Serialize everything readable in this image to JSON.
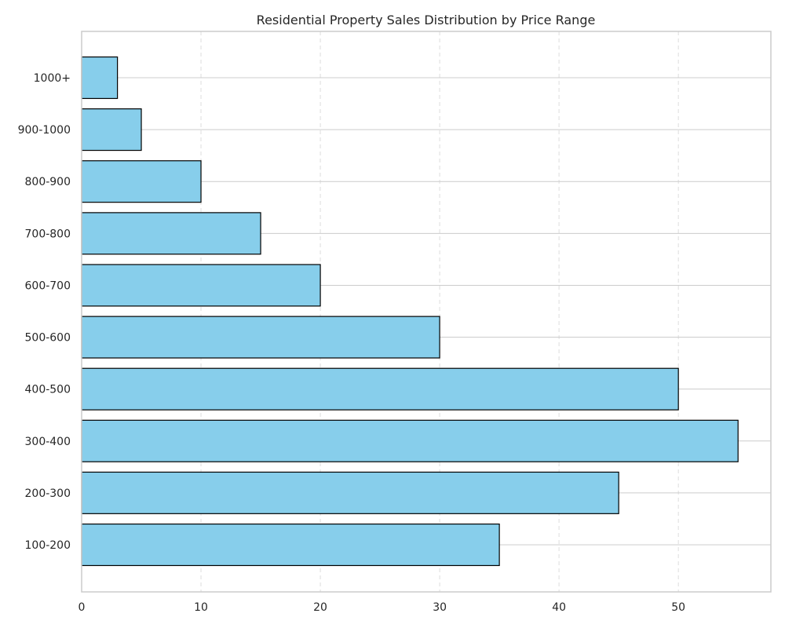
{
  "chart_data": {
    "type": "bar",
    "orientation": "horizontal",
    "title": "Residential Property Sales Distribution by Price Range",
    "xlabel": "",
    "ylabel": "",
    "categories": [
      "100-200",
      "200-300",
      "300-400",
      "400-500",
      "500-600",
      "600-700",
      "700-800",
      "800-900",
      "900-1000",
      "1000+"
    ],
    "values": [
      35,
      45,
      55,
      50,
      30,
      20,
      15,
      10,
      5,
      3
    ],
    "xlim": [
      0,
      57.75
    ],
    "x_ticks": [
      0,
      10,
      20,
      30,
      40,
      50
    ],
    "grid": "on",
    "legend": "none",
    "colors": {
      "bar_fill": "#87CEEB",
      "bar_edge": "#000000",
      "vertical_grid": "#dddddd",
      "horizontal_grid": "#cccccc",
      "frame": "#cccccc"
    }
  }
}
